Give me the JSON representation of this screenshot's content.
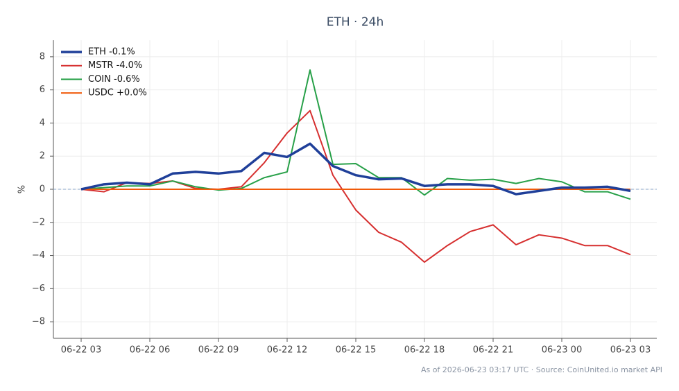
{
  "chart_data": {
    "type": "line",
    "title": "ETH · 24h",
    "y_label": "%",
    "note": "As of 2026-06-23 03:17 UTC · Source: CoinUnited.io market API",
    "categories": [
      "06-22 03",
      null,
      null,
      "06-22 06",
      null,
      null,
      "06-22 09",
      null,
      null,
      "06-22 12",
      null,
      null,
      "06-22 15",
      null,
      null,
      "06-22 18",
      null,
      null,
      "06-22 21",
      null,
      null,
      "06-23 00",
      null,
      null,
      "06-23 03"
    ],
    "series": [
      {
        "name": "ETH -0.1%",
        "color": "#1f3f99",
        "width": 3.5,
        "values": [
          0,
          0.3,
          0.4,
          0.3,
          0.95,
          1.05,
          0.95,
          1.1,
          2.2,
          1.95,
          2.75,
          1.4,
          0.85,
          0.6,
          0.65,
          0.2,
          0.3,
          0.3,
          0.2,
          -0.3,
          -0.1,
          0.1,
          0.1,
          0.15,
          -0.1
        ]
      },
      {
        "name": "MSTR -4.0%",
        "color": "#d62f2f",
        "width": 2,
        "values": [
          0,
          -0.15,
          0.4,
          0.35,
          0.5,
          0.05,
          0,
          0.15,
          1.6,
          3.4,
          4.75,
          0.85,
          -1.25,
          -2.6,
          -3.2,
          -4.4,
          -3.4,
          -2.55,
          -2.15,
          -3.35,
          -2.75,
          -2.95,
          -3.4,
          -3.4,
          -3.95
        ]
      },
      {
        "name": "COIN -0.6%",
        "color": "#27a048",
        "width": 2,
        "values": [
          0,
          0.1,
          0.2,
          0.2,
          0.5,
          0.15,
          -0.05,
          0.05,
          0.7,
          1.05,
          7.2,
          1.5,
          1.55,
          0.7,
          0.7,
          -0.35,
          0.65,
          0.55,
          0.6,
          0.35,
          0.65,
          0.45,
          -0.15,
          -0.15,
          -0.6
        ]
      },
      {
        "name": "USDC +0.0%",
        "color": "#f05a0a",
        "width": 2,
        "values": [
          0,
          0,
          0,
          0,
          0,
          0,
          0,
          0,
          0,
          0,
          0,
          0,
          0,
          0,
          0,
          0,
          0,
          0,
          0,
          0,
          0,
          0,
          0,
          0,
          0
        ]
      }
    ],
    "ylim": [
      -9,
      9
    ],
    "yticks": [
      {
        "value": -8,
        "label": "−8"
      },
      {
        "value": -6,
        "label": "−6"
      },
      {
        "value": -4,
        "label": "−4"
      },
      {
        "value": -2,
        "label": "−2"
      },
      0,
      2,
      4,
      6,
      8
    ],
    "grid": true,
    "zero_line": true,
    "legend": "upper-left"
  }
}
